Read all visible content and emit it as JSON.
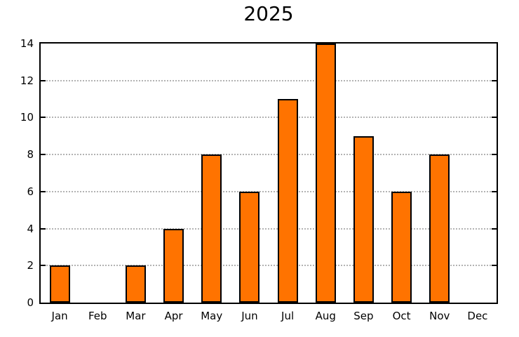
{
  "chart_data": {
    "type": "bar",
    "title": "2025",
    "categories": [
      "Jan",
      "Feb",
      "Mar",
      "Apr",
      "May",
      "Jun",
      "Jul",
      "Aug",
      "Sep",
      "Oct",
      "Nov",
      "Dec"
    ],
    "values": [
      2,
      0,
      2,
      4,
      8,
      6,
      11,
      14,
      9,
      6,
      8,
      0
    ],
    "xlabel": "",
    "ylabel": "",
    "ylim": [
      0,
      14
    ],
    "ytick_step": 2,
    "yticks": [
      0,
      2,
      4,
      6,
      8,
      10,
      12,
      14
    ],
    "grid": "horizontal-dotted",
    "legend": "none",
    "colors": {
      "bar_fill": "#FF7300",
      "bar_border": "#000000",
      "frame": "#000000",
      "gridline": "#B3B3B3",
      "text": "#000000",
      "background": "#FFFFFF"
    }
  }
}
